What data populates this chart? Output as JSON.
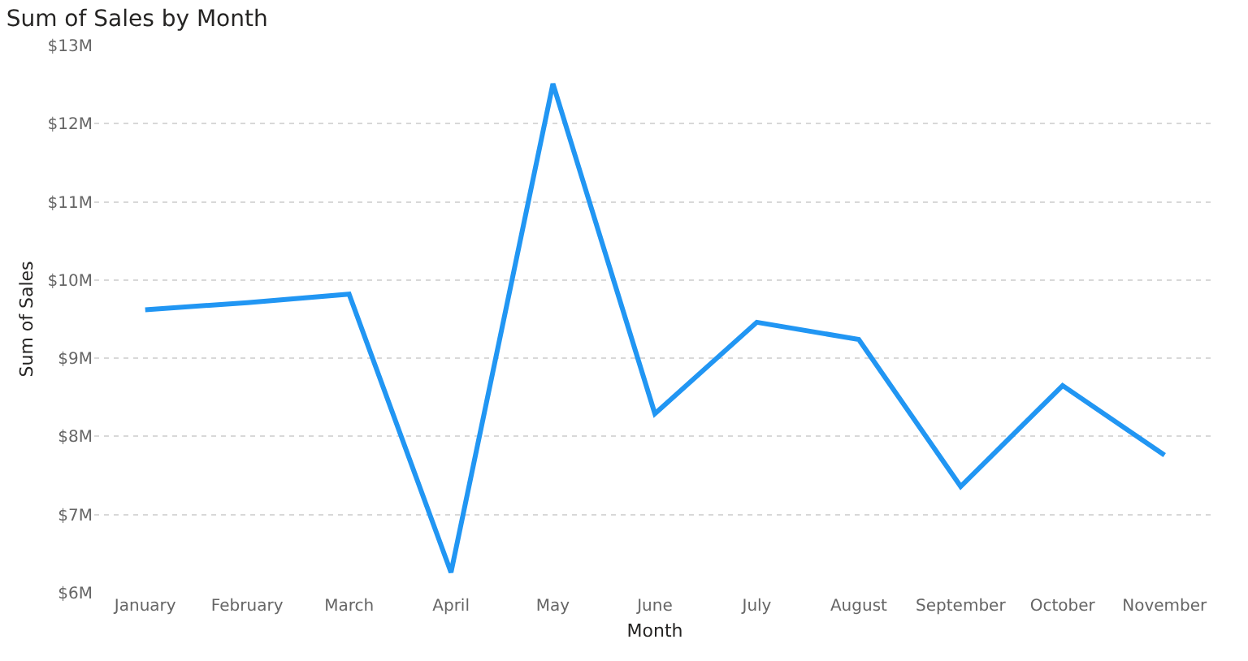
{
  "chart_data": {
    "type": "line",
    "title": "Sum of Sales by Month",
    "xlabel": "Month",
    "ylabel": "Sum of Sales",
    "categories": [
      "January",
      "February",
      "March",
      "April",
      "May",
      "June",
      "July",
      "August",
      "September",
      "October",
      "November"
    ],
    "series": [
      {
        "color": "#2196f3",
        "values": [
          9.62,
          9.71,
          9.82,
          6.26,
          12.51,
          8.29,
          9.46,
          9.24,
          7.36,
          8.65,
          7.76
        ]
      }
    ],
    "ylim": [
      6,
      13
    ],
    "yticks": [
      {
        "value": 6,
        "label": "$6M"
      },
      {
        "value": 7,
        "label": "$7M"
      },
      {
        "value": 8,
        "label": "$8M"
      },
      {
        "value": 9,
        "label": "$9M"
      },
      {
        "value": 10,
        "label": "$10M"
      },
      {
        "value": 11,
        "label": "$11M"
      },
      {
        "value": 12,
        "label": "$12M"
      },
      {
        "value": 13,
        "label": "$13M"
      }
    ],
    "grid": "y",
    "marker": "none",
    "line_style": "solid"
  }
}
